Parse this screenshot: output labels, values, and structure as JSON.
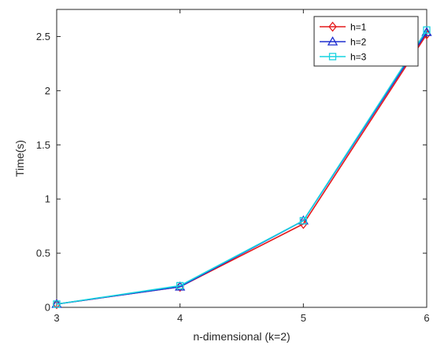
{
  "chart_data": {
    "type": "line",
    "title": "",
    "xlabel": "n-dimensional (k=2)",
    "ylabel": "Time(s)",
    "x": [
      3,
      4,
      5,
      6
    ],
    "xlim": [
      3,
      6
    ],
    "ylim": [
      0,
      2.75
    ],
    "xticks": [
      "3",
      "4",
      "5",
      "6"
    ],
    "yticks": [
      "0",
      "0.5",
      "1",
      "1.5",
      "2",
      "2.5"
    ],
    "ytick_values": [
      0,
      0.5,
      1,
      1.5,
      2,
      2.5
    ],
    "grid": false,
    "legend_position": "top-right",
    "series": [
      {
        "name": "h=1",
        "values": [
          0.03,
          0.19,
          0.77,
          2.52
        ],
        "color": "#e41a1c",
        "marker": "diamond"
      },
      {
        "name": "h=2",
        "values": [
          0.03,
          0.19,
          0.8,
          2.54
        ],
        "color": "#1f2fcf",
        "marker": "triangle"
      },
      {
        "name": "h=3",
        "values": [
          0.03,
          0.2,
          0.8,
          2.56
        ],
        "color": "#17d3e0",
        "marker": "square"
      }
    ]
  }
}
